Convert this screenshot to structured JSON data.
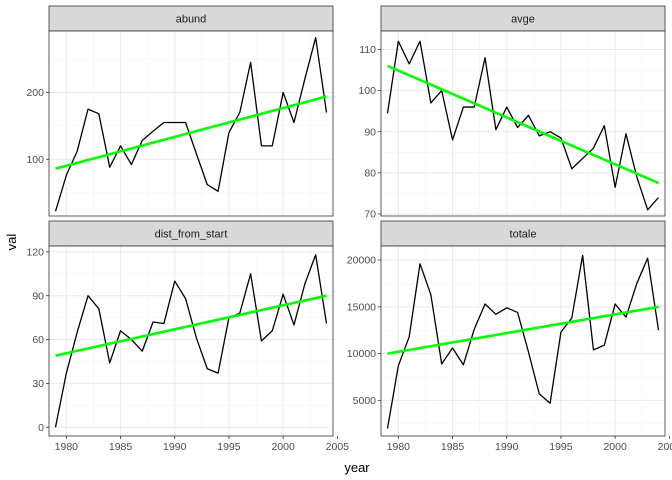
{
  "chart_data": {
    "type": "line",
    "xlabel": "year",
    "ylabel": "val",
    "layout": "facet 2x2",
    "grid": true,
    "colors": {
      "series": "#000000",
      "trend": "#00ff00"
    },
    "x": [
      1979,
      1980,
      1981,
      1982,
      1983,
      1984,
      1985,
      1986,
      1987,
      1988,
      1989,
      1990,
      1991,
      1992,
      1993,
      1994,
      1995,
      1996,
      1997,
      1998,
      1999,
      2000,
      2001,
      2002,
      2003,
      2004
    ],
    "xlim": [
      1978.4,
      2004.6
    ],
    "xticks": [
      1980,
      1985,
      1990,
      1995,
      2000,
      2005
    ],
    "xtick_labels": [
      "1980",
      "1985",
      "1990",
      "1995",
      "2000",
      "2005"
    ],
    "panels": [
      {
        "name": "abund",
        "ylim": [
          15,
          292
        ],
        "yticks": [
          100,
          200
        ],
        "ytick_labels": [
          "100",
          "200"
        ],
        "values": [
          22,
          76,
          112,
          175,
          168,
          88,
          120,
          92,
          128,
          142,
          155,
          155,
          155,
          108,
          62,
          52,
          140,
          170,
          245,
          120,
          120,
          200,
          155,
          220,
          282,
          170
        ],
        "trend": [
          86,
          194
        ]
      },
      {
        "name": "avge",
        "ylim": [
          69.5,
          114.5
        ],
        "yticks": [
          70,
          80,
          90,
          100,
          110
        ],
        "ytick_labels": [
          "70",
          "80",
          "90",
          "100",
          "110"
        ],
        "values": [
          94.5,
          112,
          106.5,
          112,
          97,
          100,
          88,
          96,
          96,
          108,
          90.5,
          96,
          91,
          94,
          89,
          90,
          88.5,
          81,
          83.5,
          86,
          91.5,
          76.5,
          89.5,
          79,
          71,
          74
        ],
        "trend": [
          106,
          77.5
        ]
      },
      {
        "name": "dist_from_start",
        "ylim": [
          -6,
          124
        ],
        "yticks": [
          0,
          30,
          60,
          90,
          120
        ],
        "ytick_labels": [
          "0",
          "30",
          "60",
          "90",
          "120"
        ],
        "values": [
          0,
          37,
          65,
          90,
          81,
          44,
          66,
          60,
          52,
          72,
          71,
          100,
          88,
          61,
          40,
          37,
          75,
          78,
          105,
          59,
          66,
          91,
          70,
          98,
          118,
          71
        ],
        "trend": [
          49,
          90
        ]
      },
      {
        "name": "totale",
        "ylim": [
          1200,
          21500
        ],
        "yticks": [
          5000,
          10000,
          15000,
          20000
        ],
        "ytick_labels": [
          "5000",
          "10000",
          "15000",
          "20000"
        ],
        "values": [
          2000,
          8700,
          11800,
          19600,
          16300,
          8900,
          10600,
          8800,
          12600,
          15300,
          14200,
          14900,
          14400,
          10200,
          5700,
          4700,
          12300,
          13800,
          20500,
          10400,
          10900,
          15300,
          13900,
          17500,
          20200,
          12500
        ],
        "trend": [
          10000,
          15000
        ]
      }
    ]
  }
}
